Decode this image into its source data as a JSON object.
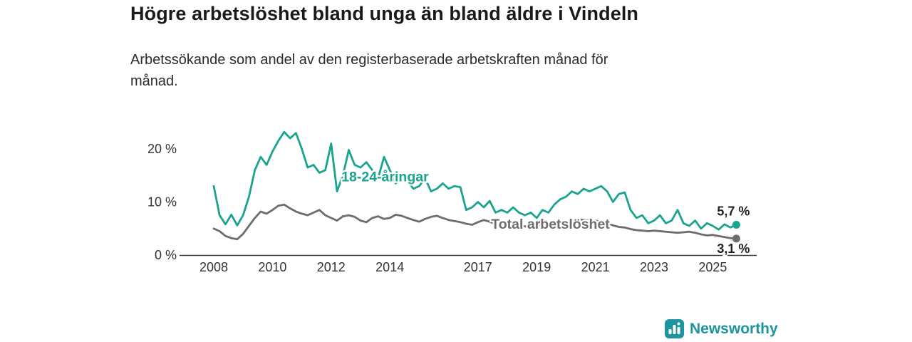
{
  "header": {
    "title": "Högre arbetslöshet bland unga än bland äldre i Vindeln",
    "subtitle": "Arbetssökande som andel av den registerbaserade arbetskraften månad för\nmånad."
  },
  "chart_data": {
    "type": "line",
    "title": "Högre arbetslöshet bland unga än bland äldre i Vindeln",
    "subtitle": "Arbetssökande som andel av den registerbaserade arbetskraften månad för månad.",
    "y_unit": "%",
    "ylim": [
      0,
      25
    ],
    "x_range": [
      2008,
      2025.8
    ],
    "grid": false,
    "legend": "inline-labels",
    "axis_color": "#3a3a3a",
    "tick_label_color": "#333333",
    "x_ticks": [
      {
        "x": 2008,
        "label": "2008"
      },
      {
        "x": 2010,
        "label": "2010"
      },
      {
        "x": 2012,
        "label": "2012"
      },
      {
        "x": 2014,
        "label": "2014"
      },
      {
        "x": 2017,
        "label": "2017"
      },
      {
        "x": 2019,
        "label": "2019"
      },
      {
        "x": 2021,
        "label": "2021"
      },
      {
        "x": 2023,
        "label": "2023"
      },
      {
        "x": 2025,
        "label": "2025"
      }
    ],
    "y_ticks": [
      {
        "v": 0,
        "label": "0 %"
      },
      {
        "v": 10,
        "label": "10 %"
      },
      {
        "v": 20,
        "label": "20 %"
      }
    ],
    "series": [
      {
        "name": "18-24-åringar",
        "color": "#1aa38e",
        "x_start": 2008,
        "x_step_years": 0.2,
        "end_value": 5.7,
        "end_value_label": "5,7 %",
        "label_pos": {
          "year": 2012.35,
          "value": 13.9
        },
        "values": [
          13.0,
          7.5,
          5.8,
          7.6,
          5.6,
          7.5,
          11.0,
          16.0,
          18.5,
          17.0,
          19.5,
          21.5,
          23.2,
          22.0,
          23.0,
          20.0,
          16.5,
          17.0,
          15.5,
          16.0,
          21.0,
          12.0,
          15.0,
          19.8,
          17.0,
          16.5,
          17.5,
          16.0,
          14.5,
          18.5,
          16.0,
          13.5,
          15.0,
          14.0,
          12.5,
          13.0,
          14.5,
          12.0,
          12.5,
          13.5,
          12.5,
          13.0,
          12.8,
          8.5,
          9.0,
          10.0,
          9.0,
          10.2,
          8.0,
          8.5,
          8.0,
          9.0,
          8.0,
          7.5,
          8.0,
          7.0,
          8.5,
          8.0,
          9.5,
          10.5,
          11.0,
          12.0,
          11.5,
          12.5,
          12.0,
          12.5,
          13.0,
          12.0,
          10.0,
          11.5,
          11.8,
          8.5,
          7.0,
          7.5,
          6.0,
          6.5,
          7.5,
          6.0,
          6.5,
          8.5,
          6.0,
          5.5,
          6.5,
          5.0,
          6.0,
          5.5,
          4.8,
          5.8,
          5.2,
          5.7
        ]
      },
      {
        "name": "Total arbetslöshet",
        "color": "#6d6d6d",
        "x_start": 2008,
        "x_step_years": 0.2,
        "end_value": 3.1,
        "end_value_label": "3,1 %",
        "label_pos": {
          "year": 2017.45,
          "value": 5.0
        },
        "values": [
          5.0,
          4.5,
          3.6,
          3.2,
          3.0,
          4.0,
          5.5,
          7.0,
          8.2,
          7.8,
          8.5,
          9.3,
          9.5,
          8.8,
          8.2,
          7.8,
          7.5,
          8.0,
          8.5,
          7.5,
          7.0,
          6.5,
          7.3,
          7.5,
          7.2,
          6.5,
          6.2,
          7.0,
          7.3,
          6.8,
          7.0,
          7.6,
          7.4,
          7.0,
          6.6,
          6.3,
          6.8,
          7.2,
          7.4,
          7.0,
          6.6,
          6.4,
          6.2,
          5.9,
          5.7,
          6.2,
          6.6,
          6.3,
          5.8,
          5.5,
          5.6,
          6.0,
          5.8,
          5.4,
          5.2,
          5.4,
          5.8,
          6.0,
          6.2,
          6.0,
          6.2,
          6.6,
          6.8,
          6.6,
          6.4,
          6.5,
          6.3,
          6.0,
          5.6,
          5.3,
          5.2,
          4.9,
          4.7,
          4.6,
          4.5,
          4.6,
          4.5,
          4.4,
          4.3,
          4.2,
          4.3,
          4.4,
          4.2,
          3.9,
          3.7,
          3.8,
          3.6,
          3.4,
          3.2,
          3.1
        ]
      }
    ],
    "end_label_color": "#222222"
  },
  "footer": {
    "brand": "Newsworthy",
    "brand_color": "#1d95a0"
  }
}
